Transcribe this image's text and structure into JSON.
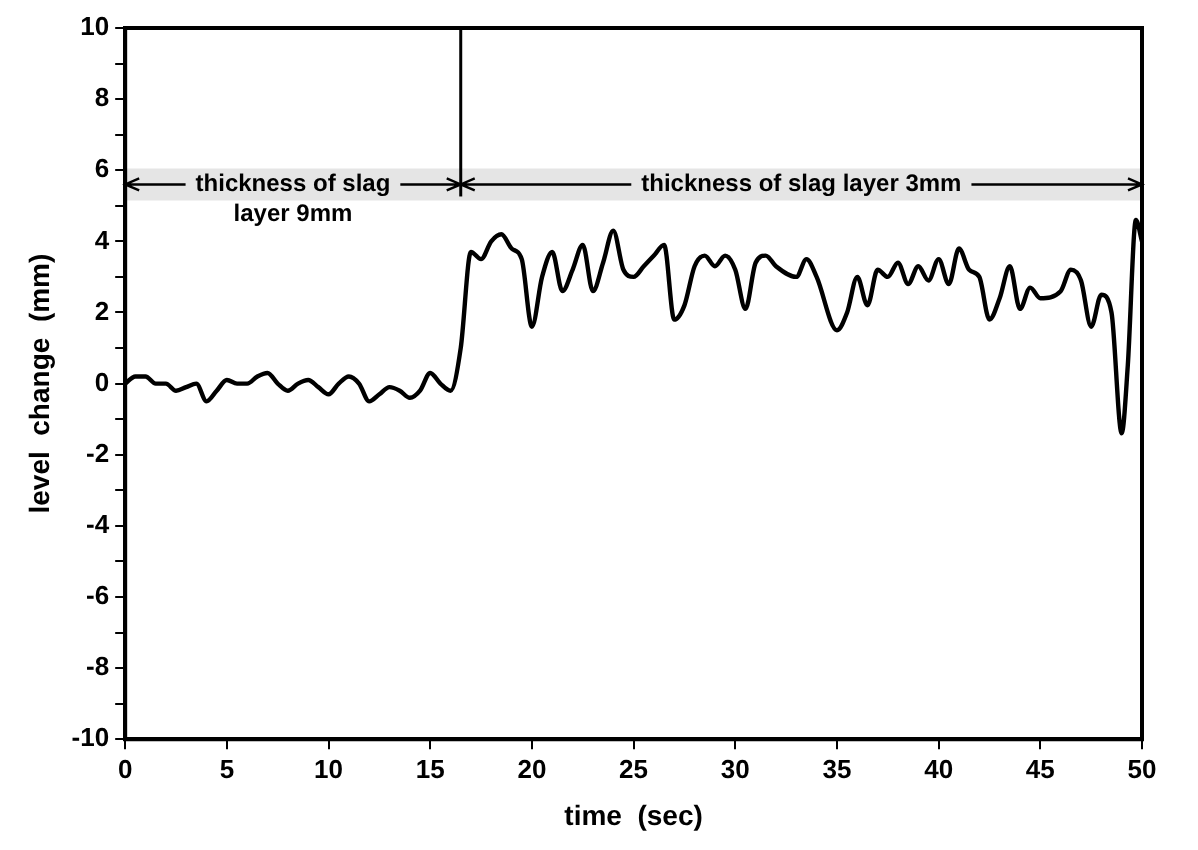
{
  "chart_data": {
    "type": "line",
    "xlabel": "time  (sec)",
    "ylabel": "level  change  (mm)",
    "xlim": [
      0,
      50
    ],
    "xticks": [
      0,
      5,
      10,
      15,
      20,
      25,
      30,
      35,
      40,
      45,
      50
    ],
    "ylim": [
      -10,
      10
    ],
    "yticks": [
      -10,
      {
        "value": -9,
        "label": null
      },
      -8,
      {
        "value": -7,
        "label": null
      },
      -6,
      {
        "value": -5,
        "label": null
      },
      -4,
      {
        "value": -3,
        "label": null
      },
      -2,
      {
        "value": -1,
        "label": null
      },
      0,
      {
        "value": 1,
        "label": null
      },
      2,
      {
        "value": 3,
        "label": null
      },
      4,
      {
        "value": 5,
        "label": null
      },
      6,
      {
        "value": 7,
        "label": null
      },
      8,
      {
        "value": 9,
        "label": null
      },
      10
    ],
    "grid": false,
    "legend": false,
    "marker": "none",
    "line_style": "solid",
    "ref_lines": [
      {
        "axis": "x",
        "value": 16.5,
        "color": "#000000"
      }
    ],
    "bands": [
      {
        "axis": "x",
        "from": 0,
        "to": 16.5,
        "label": "thickness of slag\nlayer 9mm",
        "color": "#000000"
      },
      {
        "axis": "x",
        "from": 16.5,
        "to": 50,
        "label": "thickness of slag layer 3mm",
        "color": "#000000"
      }
    ],
    "series": [
      {
        "color": "#000000",
        "x": [
          0,
          0.5,
          1,
          1.5,
          2,
          2.5,
          3,
          3.5,
          4,
          4.5,
          5,
          5.5,
          6,
          6.5,
          7,
          7.5,
          8,
          8.5,
          9,
          9.5,
          10,
          10.5,
          11,
          11.5,
          12,
          12.5,
          13,
          13.5,
          14,
          14.5,
          15,
          15.5,
          16,
          16.5,
          17,
          17.5,
          18,
          18.5,
          19,
          19.5,
          20,
          20.5,
          21,
          21.5,
          22,
          22.5,
          23,
          23.5,
          24,
          24.5,
          25,
          25.5,
          26,
          26.5,
          27,
          27.5,
          28,
          28.5,
          29,
          29.5,
          30,
          30.5,
          31,
          31.5,
          32,
          33,
          33.5,
          34,
          35,
          35.5,
          36,
          36.5,
          37,
          37.5,
          38,
          38.5,
          39,
          39.5,
          40,
          40.5,
          41,
          41.5,
          42,
          42.5,
          43,
          43.5,
          44,
          44.5,
          45,
          46,
          46.5,
          47,
          47.5,
          48,
          48.5,
          49,
          49.3,
          49.7,
          50
        ],
        "values": [
          0,
          0.2,
          0.2,
          0,
          0,
          -0.2,
          -0.1,
          0,
          -0.5,
          -0.2,
          0.1,
          0,
          0,
          0.2,
          0.3,
          0,
          -0.2,
          0,
          0.1,
          -0.1,
          -0.3,
          0,
          0.2,
          0,
          -0.5,
          -0.3,
          -0.1,
          -0.2,
          -0.4,
          -0.2,
          0.3,
          0,
          -0.2,
          1,
          3.7,
          3.5,
          4.0,
          4.2,
          3.8,
          3.5,
          1.6,
          3.0,
          3.7,
          2.6,
          3.2,
          3.9,
          2.6,
          3.4,
          4.3,
          3.2,
          3.0,
          3.3,
          3.6,
          3.9,
          1.8,
          2.2,
          3.3,
          3.6,
          3.3,
          3.6,
          3.2,
          2.1,
          3.4,
          3.6,
          3.3,
          3.0,
          3.5,
          3.0,
          1.5,
          2.0,
          3.0,
          2.2,
          3.2,
          3.0,
          3.4,
          2.8,
          3.3,
          2.9,
          3.5,
          2.8,
          3.8,
          3.2,
          3.0,
          1.8,
          2.4,
          3.3,
          2.1,
          2.7,
          2.4,
          2.6,
          3.2,
          2.9,
          1.6,
          2.5,
          2.0,
          -1.4,
          0.5,
          4.6,
          4.0
        ]
      }
    ]
  }
}
